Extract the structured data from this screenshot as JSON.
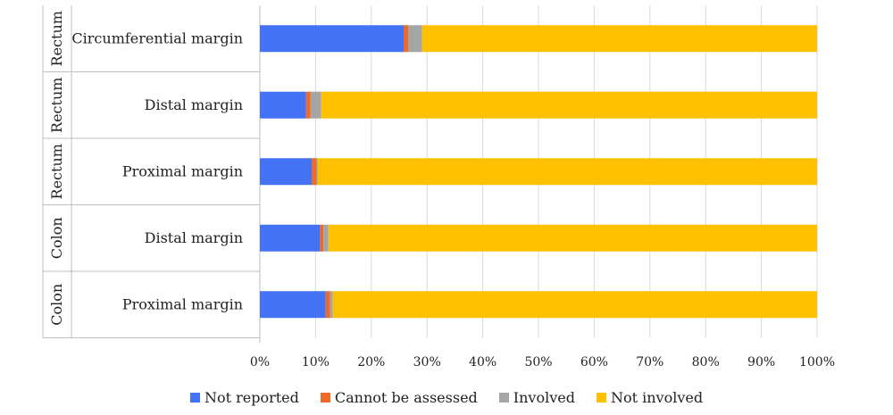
{
  "chart_data": {
    "type": "bar",
    "orientation": "horizontal",
    "stacked": "percent",
    "categories": [
      {
        "group": "Rectum",
        "label": "Circumferential margin"
      },
      {
        "group": "Rectum",
        "label": "Distal margin"
      },
      {
        "group": "Rectum",
        "label": "Proximal margin"
      },
      {
        "group": "Colon",
        "label": "Distal margin"
      },
      {
        "group": "Colon",
        "label": "Proximal margin"
      }
    ],
    "series": [
      {
        "name": "Not reported",
        "color": "#4472F4",
        "values": [
          25.8,
          8.3,
          9.3,
          10.8,
          11.8
        ]
      },
      {
        "name": "Cannot be assessed",
        "color": "#ED6A28",
        "values": [
          0.8,
          0.8,
          0.9,
          0.6,
          0.8
        ]
      },
      {
        "name": "Involved",
        "color": "#A5A5A5",
        "values": [
          2.5,
          1.9,
          0.2,
          0.9,
          0.5
        ]
      },
      {
        "name": "Not involved",
        "color": "#FFC000",
        "values": [
          70.9,
          89.0,
          89.6,
          87.7,
          86.9
        ]
      }
    ],
    "xlim": [
      0,
      100
    ],
    "xticks": [
      "0%",
      "10%",
      "20%",
      "30%",
      "40%",
      "50%",
      "60%",
      "70%",
      "80%",
      "90%",
      "100%"
    ],
    "grid": "vertical",
    "legend_position": "bottom"
  }
}
